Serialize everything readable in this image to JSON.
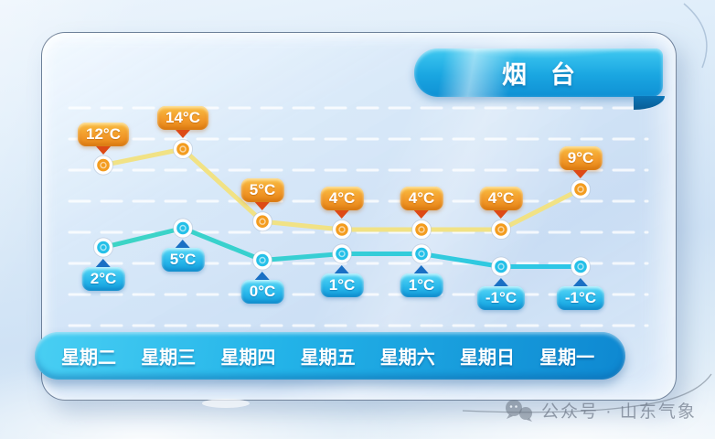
{
  "header": {
    "title": "烟台"
  },
  "footer": {
    "watermark": "公众号 · 山东气象"
  },
  "chart_data": {
    "type": "line",
    "categories": [
      "星期二",
      "星期三",
      "星期四",
      "星期五",
      "星期六",
      "星期日",
      "星期一"
    ],
    "series": [
      {
        "name": "high",
        "values": [
          12,
          14,
          5,
          4,
          4,
          4,
          9
        ],
        "labels": [
          "12°C",
          "14°C",
          "5°C",
          "4°C",
          "4°C",
          "4°C",
          "9°C"
        ],
        "line_color": "#f1e285",
        "marker_color": "#f39c1f",
        "badge_color": "#f29a2a"
      },
      {
        "name": "low",
        "values": [
          2,
          5,
          0,
          1,
          1,
          -1,
          -1
        ],
        "labels": [
          "2°C",
          "5°C",
          "0°C",
          "1°C",
          "1°C",
          "-1°C",
          "-1°C"
        ],
        "line_color": "#35cfd0",
        "marker_color": "#25c0e8",
        "badge_color": "#27b6ea"
      }
    ],
    "grid": true,
    "legend_position": "none",
    "ylim": [
      -3,
      16
    ]
  }
}
